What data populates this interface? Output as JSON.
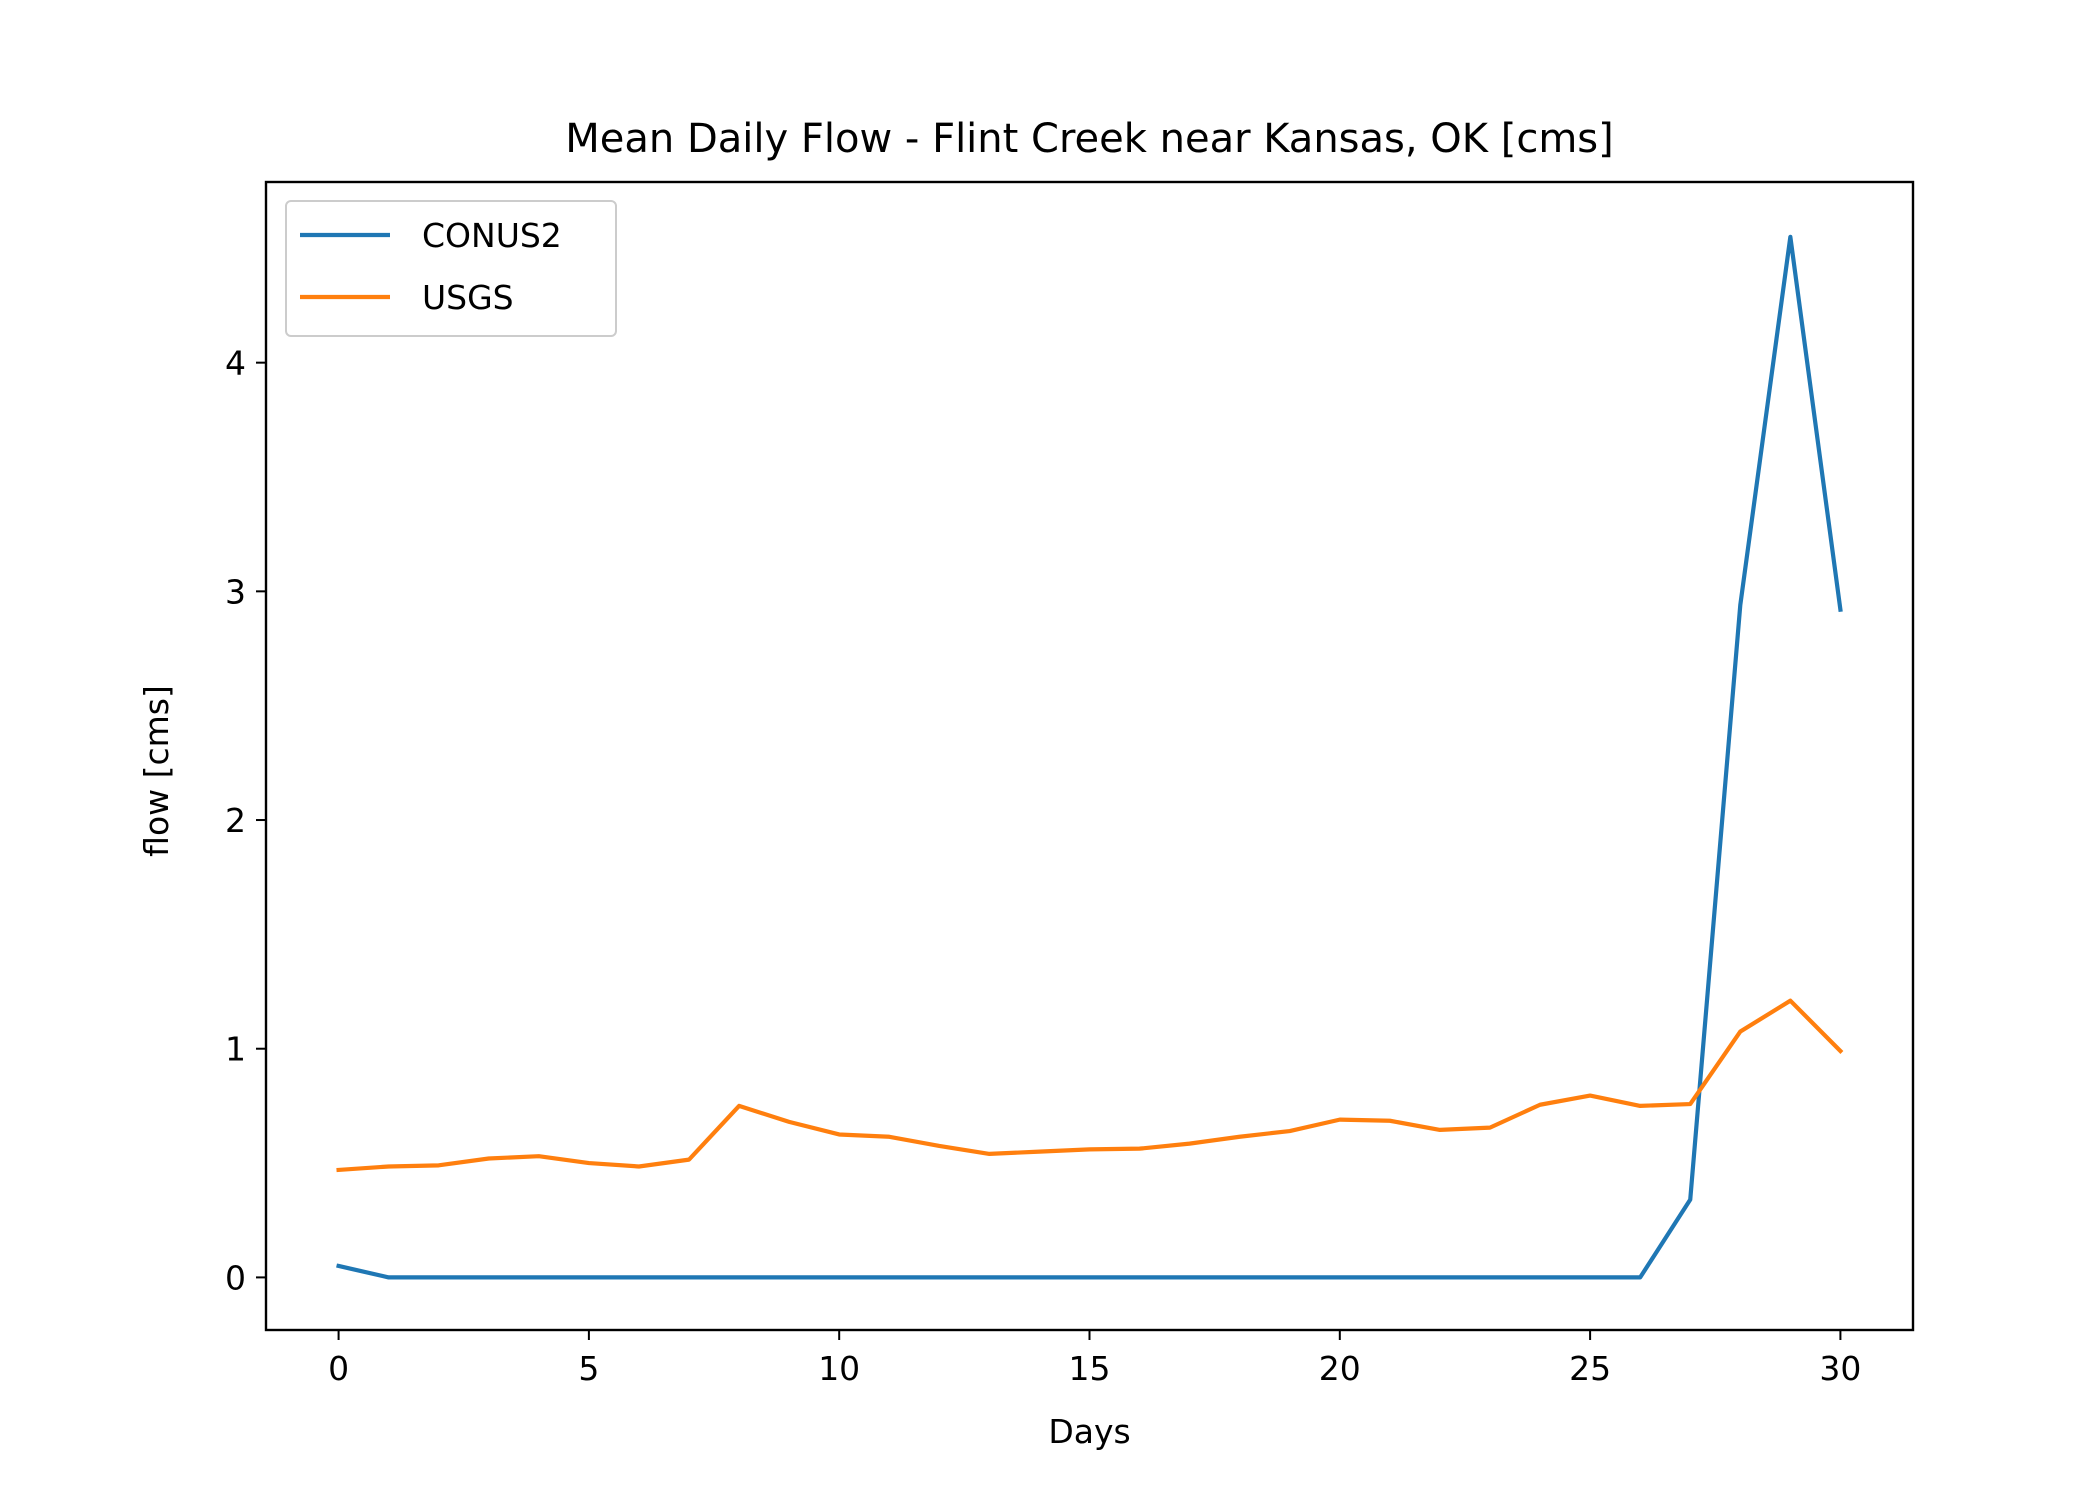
{
  "chart_data": {
    "type": "line",
    "title": "Mean Daily Flow - Flint Creek near Kansas, OK [cms]",
    "xlabel": "Days",
    "ylabel": "flow [cms]",
    "xlim": [
      -1.45,
      31.45
    ],
    "ylim": [
      -0.23,
      4.79
    ],
    "xticks": [
      0,
      5,
      10,
      15,
      20,
      25,
      30
    ],
    "xtick_labels": [
      "0",
      "5",
      "10",
      "15",
      "20",
      "25",
      "30"
    ],
    "yticks": [
      0,
      1,
      2,
      3,
      4
    ],
    "ytick_labels": [
      "0",
      "1",
      "2",
      "3",
      "4"
    ],
    "grid": false,
    "legend_position": "top-left",
    "x": [
      0,
      1,
      2,
      3,
      4,
      5,
      6,
      7,
      8,
      9,
      10,
      11,
      12,
      13,
      14,
      15,
      16,
      17,
      18,
      19,
      20,
      21,
      22,
      23,
      24,
      25,
      26,
      27,
      28,
      29,
      30
    ],
    "series": [
      {
        "name": "CONUS2",
        "color": "#1f77b4",
        "values": [
          0.05,
          0.0,
          0.0,
          0.0,
          0.0,
          0.0,
          0.0,
          0.0,
          0.0,
          0.0,
          0.0,
          0.0,
          0.0,
          0.0,
          0.0,
          0.0,
          0.0,
          0.0,
          0.0,
          0.0,
          0.0,
          0.0,
          0.0,
          0.0,
          0.0,
          0.0,
          0.0,
          0.34,
          2.94,
          4.55,
          2.92
        ]
      },
      {
        "name": "USGS",
        "color": "#ff7f0e",
        "values": [
          0.47,
          0.485,
          0.49,
          0.52,
          0.53,
          0.5,
          0.485,
          0.515,
          0.75,
          0.68,
          0.625,
          0.615,
          0.575,
          0.54,
          0.55,
          0.56,
          0.563,
          0.585,
          0.615,
          0.64,
          0.69,
          0.685,
          0.645,
          0.655,
          0.755,
          0.795,
          0.75,
          0.758,
          1.075,
          1.21,
          0.99
        ]
      }
    ]
  }
}
